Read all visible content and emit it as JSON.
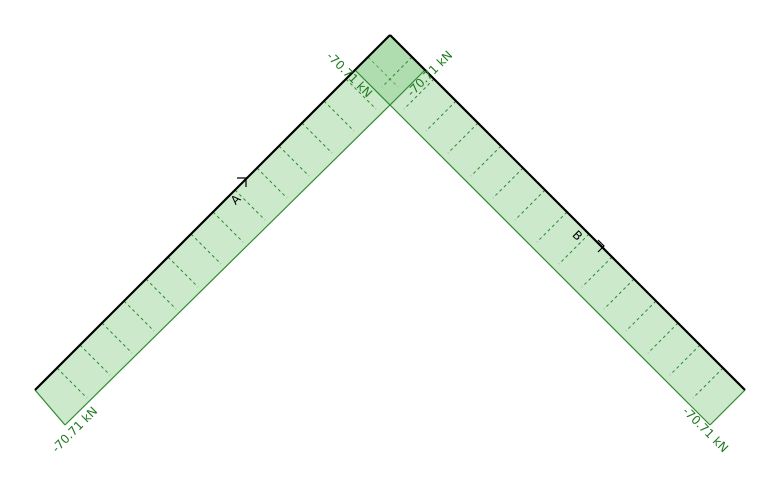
{
  "members": [
    {
      "name": "A",
      "start_force": "-70.71 kN",
      "end_force": "-70.71 kN"
    },
    {
      "name": "B",
      "start_force": "-70.71 kN",
      "end_force": "-70.71 kN"
    }
  ],
  "colors": {
    "member": "#000000",
    "diagram_stroke": "#2e8b2e",
    "diagram_fill": "#8fce8f",
    "label": "#1f7a1f"
  }
}
